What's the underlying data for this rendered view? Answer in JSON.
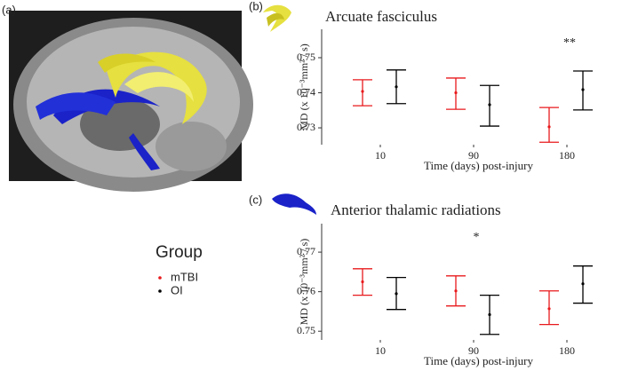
{
  "panel_a": {
    "label": "(a)"
  },
  "chart_data": [
    {
      "type": "errorbar",
      "panel_label": "(b)",
      "title": "Arcuate fasciculus",
      "xlabel": "Time (days) post-injury",
      "ylabel": "MD (x 10⁻³mm² / s)",
      "annotation": {
        "text": "**",
        "category": 2
      },
      "categories": [
        "10",
        "90",
        "180"
      ],
      "series": [
        {
          "name": "mTBI",
          "color": "#e8191c",
          "values": [
            0.7404,
            0.74,
            0.7303
          ],
          "lower": [
            0.7363,
            0.7353,
            0.7259
          ],
          "upper": [
            0.7437,
            0.7442,
            0.7358
          ]
        },
        {
          "name": "OI",
          "color": "#000000",
          "values": [
            0.7417,
            0.7366,
            0.7409
          ],
          "lower": [
            0.7369,
            0.7305,
            0.7351
          ],
          "upper": [
            0.7465,
            0.7421,
            0.7462
          ]
        }
      ],
      "ylim": [
        0.7252,
        0.7581
      ],
      "yticks": [
        0.73,
        0.74,
        0.75
      ],
      "legend_title": "Group"
    },
    {
      "type": "errorbar",
      "panel_label": "(c)",
      "title": "Anterior thalamic radiations",
      "xlabel": "Time (days) post-injury",
      "ylabel": "MD (x 10⁻³mm² / s)",
      "annotation": {
        "text": "*",
        "category": 1
      },
      "categories": [
        "10",
        "90",
        "180"
      ],
      "series": [
        {
          "name": "mTBI",
          "color": "#e8191c",
          "values": [
            0.7625,
            0.7602,
            0.7557
          ],
          "lower": [
            0.7591,
            0.7564,
            0.7517
          ],
          "upper": [
            0.7658,
            0.764,
            0.7602
          ]
        },
        {
          "name": "OI",
          "color": "#000000",
          "values": [
            0.7595,
            0.7542,
            0.762
          ],
          "lower": [
            0.7555,
            0.7492,
            0.7571
          ],
          "upper": [
            0.7636,
            0.7591,
            0.7665
          ]
        }
      ],
      "ylim": [
        0.7478,
        0.7772
      ],
      "yticks": [
        0.75,
        0.76,
        0.77
      ]
    }
  ]
}
